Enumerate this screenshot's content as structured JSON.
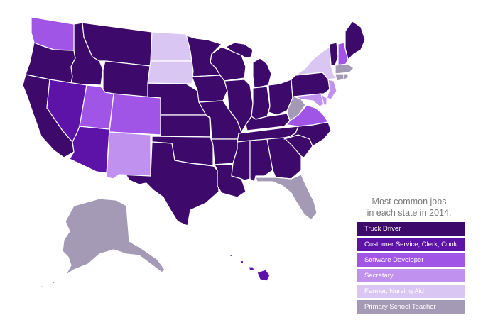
{
  "legend": {
    "title_line1": "Most common jobs",
    "title_line2": "in each state in 2014.",
    "items": [
      {
        "label": "Truck Driver",
        "color": "#3d0a6b"
      },
      {
        "label": "Customer Service, Clerk, Cook",
        "color": "#5d12a8"
      },
      {
        "label": "Software Developer",
        "color": "#a155e6"
      },
      {
        "label": "Secretary",
        "color": "#c191f0"
      },
      {
        "label": "Farmer, Nursing Aid",
        "color": "#d9c6f2"
      },
      {
        "label": "Primary School Teacher",
        "color": "#a59ab6"
      }
    ]
  },
  "states": {
    "truck_driver": [
      "Oregon",
      "California",
      "Idaho",
      "Montana",
      "Wyoming",
      "Nebraska",
      "Kansas",
      "Oklahoma",
      "Texas",
      "Minnesota",
      "Iowa",
      "Missouri",
      "Arkansas",
      "Louisiana",
      "Wisconsin",
      "Illinois",
      "Michigan",
      "Indiana",
      "Ohio",
      "Kentucky",
      "Tennessee",
      "Mississippi",
      "Alabama",
      "Georgia",
      "South Carolina",
      "North Carolina",
      "Pennsylvania",
      "Vermont",
      "Maine"
    ],
    "customer_service": [
      "Nevada",
      "Arizona",
      "Hawaii"
    ],
    "software_developer": [
      "Washington",
      "Utah",
      "Colorado",
      "Virginia",
      "New Hampshire"
    ],
    "secretary": [
      "New Mexico",
      "New Jersey",
      "Maryland",
      "Delaware"
    ],
    "farmer_nursing_aid": [
      "North Dakota",
      "South Dakota",
      "New York"
    ],
    "primary_school_teacher": [
      "Alaska",
      "Florida",
      "West Virginia",
      "Massachusetts",
      "Connecticut",
      "Rhode Island"
    ]
  }
}
